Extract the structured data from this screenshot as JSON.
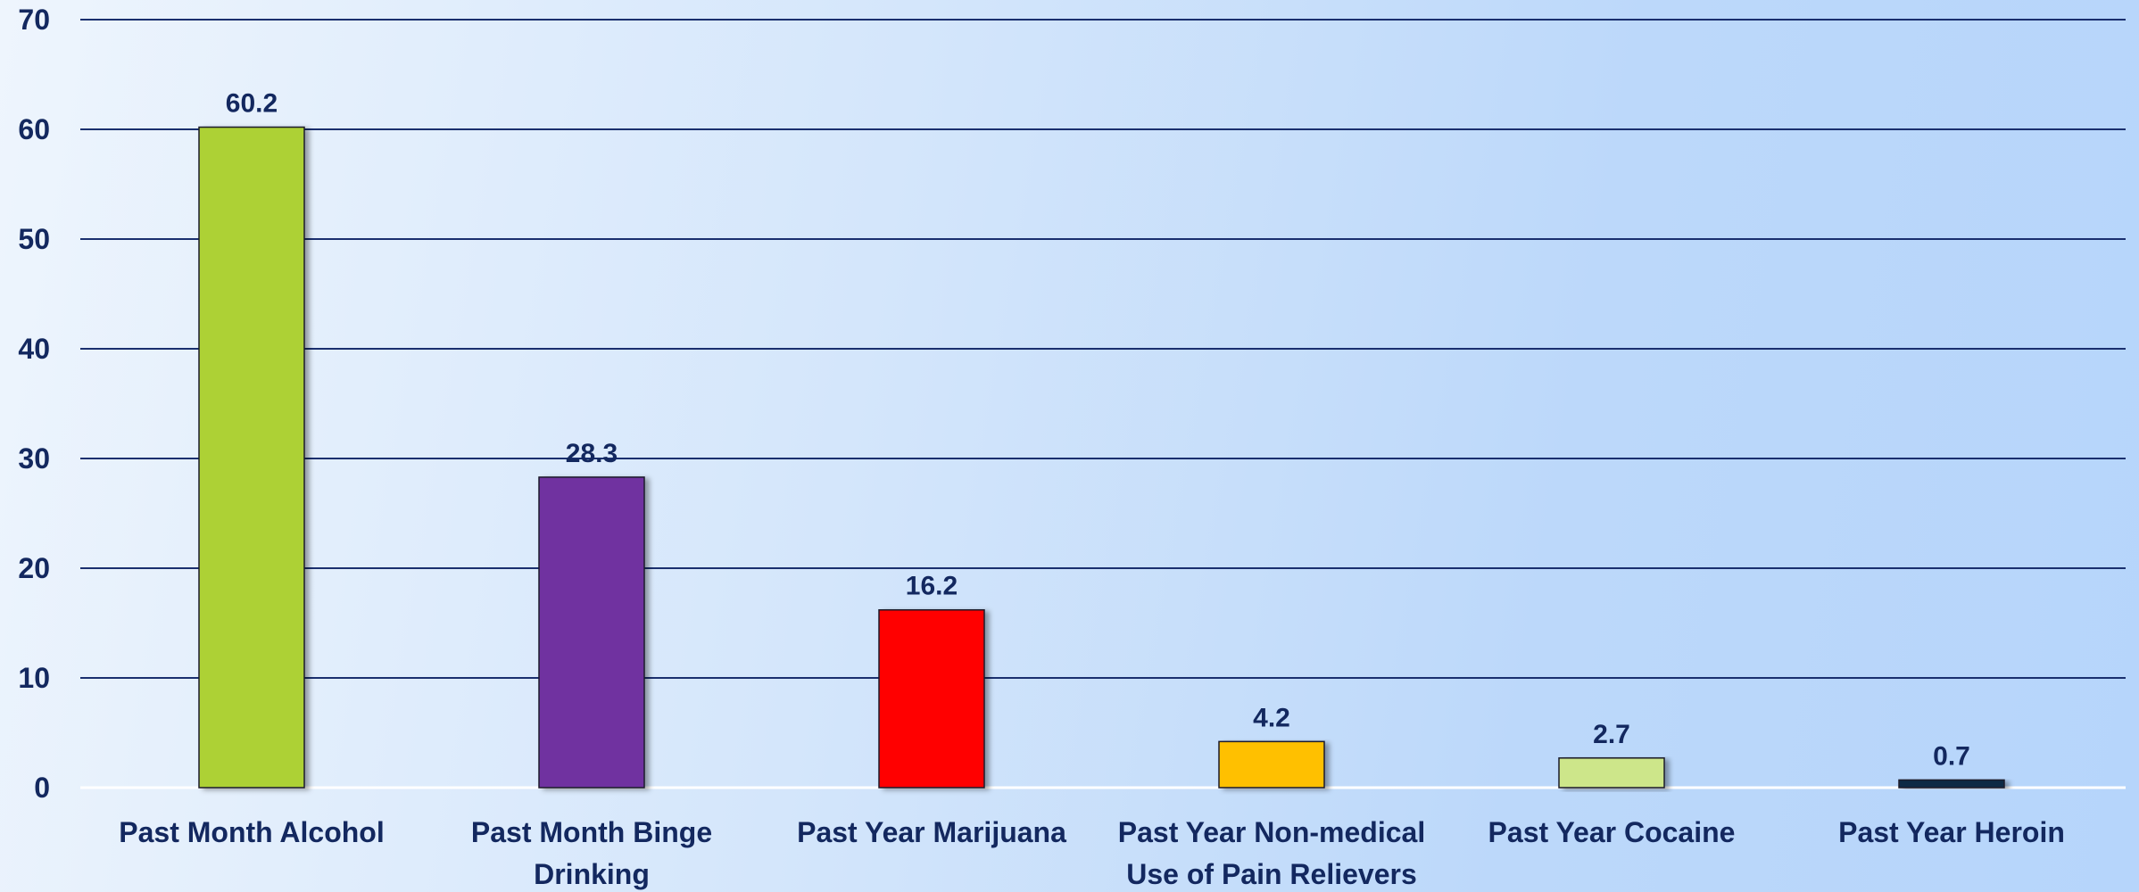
{
  "chart_data": {
    "type": "bar",
    "title": "",
    "xlabel": "",
    "ylabel": "",
    "ylim": [
      0,
      70
    ],
    "yticks": [
      0,
      10,
      20,
      30,
      40,
      50,
      60,
      70
    ],
    "grid": true,
    "legend": "none",
    "categories": [
      "Past Month Alcohol",
      "Past Month Binge Drinking",
      "Past Year Marijuana",
      "Past Year Non-medical Use of Pain Relievers",
      "Past Year Cocaine",
      "Past Year Heroin"
    ],
    "category_lines": [
      [
        "Past Month Alcohol"
      ],
      [
        "Past Month Binge",
        "Drinking"
      ],
      [
        "Past Year Marijuana"
      ],
      [
        "Past Year Non-medical",
        "Use of Pain Relievers"
      ],
      [
        "Past Year Cocaine"
      ],
      [
        "Past Year Heroin"
      ]
    ],
    "values": [
      60.2,
      28.3,
      16.2,
      4.2,
      2.7,
      0.7
    ],
    "data_labels": [
      "60.2",
      "28.3",
      "16.2",
      "4.2",
      "2.7",
      "0.7"
    ],
    "bar_colors": [
      "#add136",
      "#7030a0",
      "#ff0000",
      "#ffc000",
      "#cde68a",
      "#0d2a45"
    ],
    "gridline_color": "#1a2f6e",
    "text_color": "#13285f"
  }
}
